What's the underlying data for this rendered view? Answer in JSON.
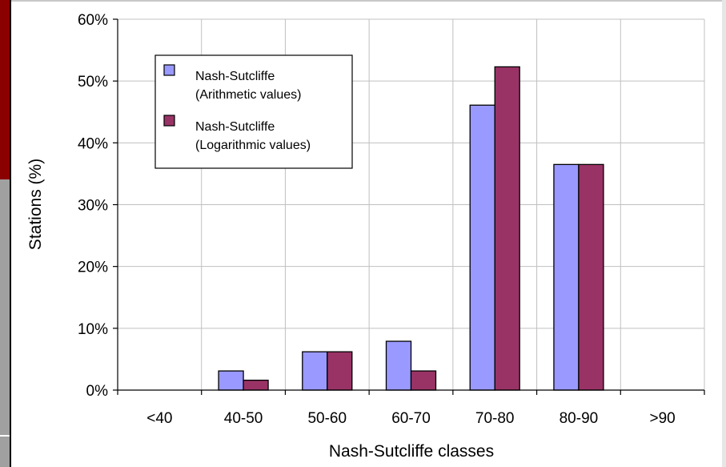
{
  "chart_data": {
    "type": "bar",
    "title": "",
    "xlabel": "Nash-Sutcliffe classes",
    "ylabel": "Stations (%)",
    "categories": [
      "<40",
      "40-50",
      "50-60",
      "60-70",
      "70-80",
      "80-90",
      ">90"
    ],
    "ylim": [
      0,
      60
    ],
    "y_ticks": [
      0,
      10,
      20,
      30,
      40,
      50,
      60
    ],
    "y_tick_labels": [
      "0%",
      "10%",
      "20%",
      "30%",
      "40%",
      "50%",
      "60%"
    ],
    "grid": "horizontal",
    "legend_placement": "top-left",
    "series": [
      {
        "name": "Nash-Sutcliffe (Arithmetic values)",
        "legend_lines": [
          "Nash-Sutcliffe",
          "(Arithmetic values)"
        ],
        "color": "#9999ff",
        "values": [
          0,
          3.1,
          6.2,
          7.9,
          46.1,
          36.5,
          0
        ]
      },
      {
        "name": "Nash-Sutcliffe (Logarithmic values)",
        "legend_lines": [
          "Nash-Sutcliffe",
          "(Logarithmic values)"
        ],
        "color": "#993366",
        "values": [
          0,
          1.6,
          6.2,
          3.1,
          52.3,
          36.5,
          0
        ]
      }
    ]
  },
  "colors": {
    "frame_red": "#8b0000",
    "frame_gray": "#a0a0a0",
    "gridline": "#c0c0c0"
  }
}
